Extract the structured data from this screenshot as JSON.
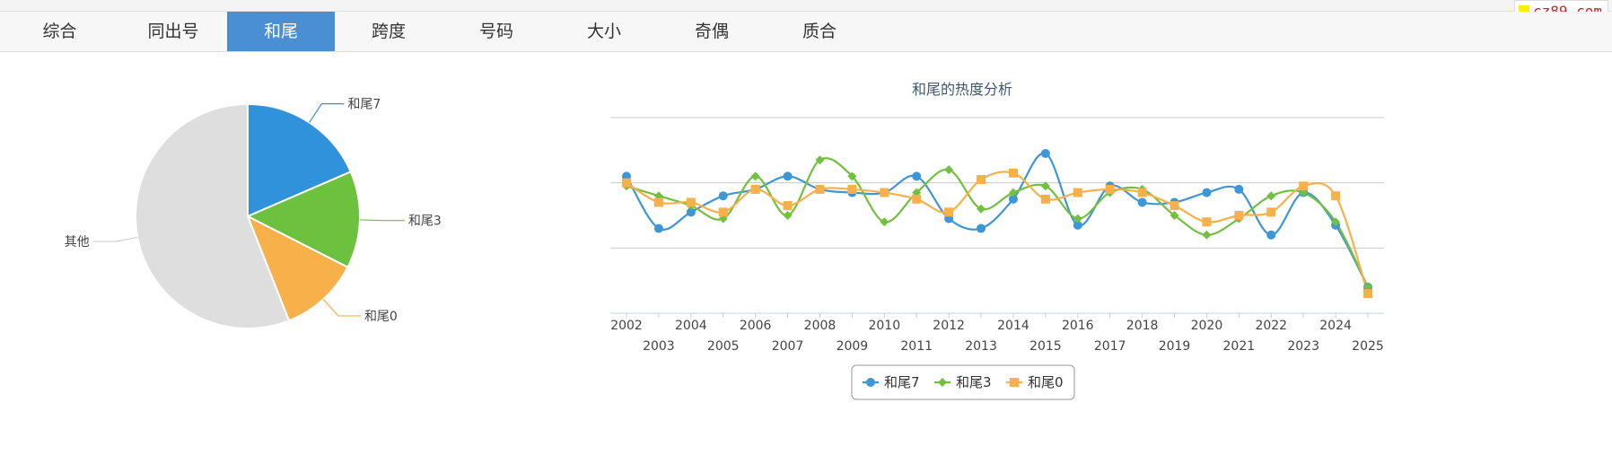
{
  "tabs": [
    {
      "label": "综合",
      "active": false
    },
    {
      "label": "同出号",
      "active": false
    },
    {
      "label": "和尾",
      "active": true
    },
    {
      "label": "跨度",
      "active": false
    },
    {
      "label": "号码",
      "active": false
    },
    {
      "label": "大小",
      "active": false
    },
    {
      "label": "奇偶",
      "active": false
    },
    {
      "label": "质合",
      "active": false
    }
  ],
  "watermark": "cz89.com",
  "colors": {
    "tab_active": "#4a8fd3",
    "series_7": "#3d96d8",
    "series_3": "#72c040",
    "series_0": "#f7b04a",
    "other": "#dedede"
  },
  "chart_data": [
    {
      "type": "pie",
      "slices": [
        {
          "label": "和尾7",
          "value": 18.5,
          "color": "#2f92db"
        },
        {
          "label": "和尾3",
          "value": 14.0,
          "color": "#6cc13e"
        },
        {
          "label": "和尾0",
          "value": 11.5,
          "color": "#f7b04a"
        },
        {
          "label": "其他",
          "value": 56.0,
          "color": "#dedede"
        }
      ]
    },
    {
      "type": "line",
      "title": "和尾的热度分析",
      "x": [
        "2002",
        "2003",
        "2004",
        "2005",
        "2006",
        "2007",
        "2008",
        "2009",
        "2010",
        "2011",
        "2012",
        "2013",
        "2014",
        "2015",
        "2016",
        "2017",
        "2018",
        "2019",
        "2020",
        "2021",
        "2022",
        "2023",
        "2024",
        "2025"
      ],
      "ylim": [
        0,
        60
      ],
      "yticks": [
        0,
        20,
        40,
        60
      ],
      "grid": true,
      "legend": "bottom-center",
      "series": [
        {
          "name": "和尾7",
          "color": "#3d96d8",
          "marker": "circle",
          "values": [
            42,
            26,
            31,
            36,
            38,
            42,
            38,
            37,
            37,
            42,
            29,
            26,
            35,
            49,
            27,
            39,
            34,
            34,
            37,
            38,
            24,
            37,
            27,
            8
          ]
        },
        {
          "name": "和尾3",
          "color": "#72c040",
          "marker": "diamond",
          "values": [
            39,
            36,
            33,
            29,
            42,
            30,
            47,
            42,
            28,
            37,
            44,
            32,
            37,
            39,
            29,
            37,
            38,
            30,
            24,
            29,
            36,
            37,
            28,
            8
          ]
        },
        {
          "name": "和尾0",
          "color": "#f7b04a",
          "marker": "square",
          "values": [
            40,
            34,
            34,
            31,
            38,
            33,
            38,
            38,
            37,
            35,
            31,
            41,
            43,
            35,
            37,
            38,
            37,
            33,
            28,
            30,
            31,
            39,
            36,
            6
          ]
        }
      ]
    }
  ]
}
